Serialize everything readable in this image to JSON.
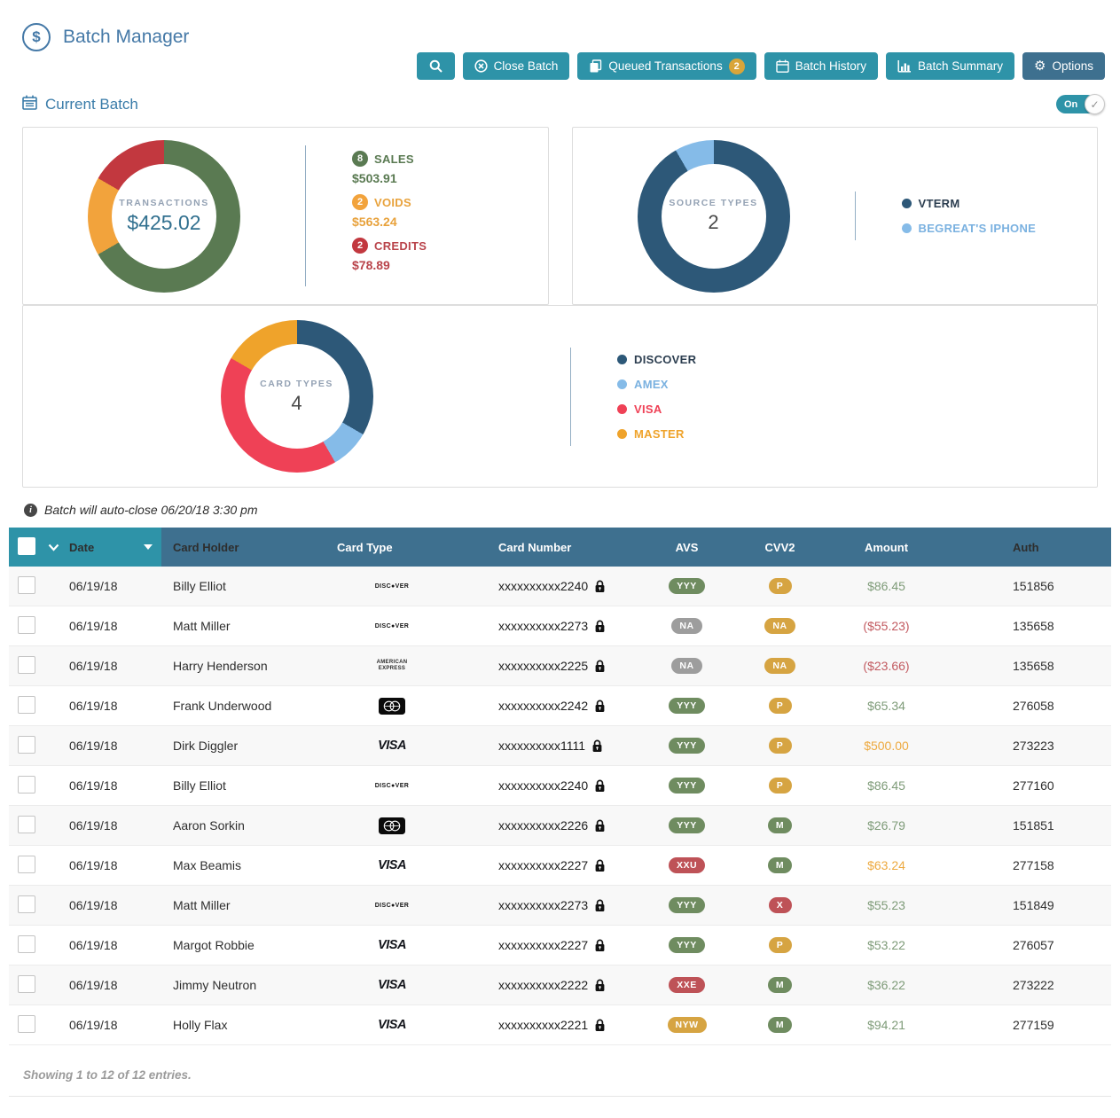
{
  "app": {
    "title": "Batch Manager",
    "section_title": "Current Batch",
    "toggle_label": "On",
    "notice": "Batch will auto-close 06/20/18 3:30 pm",
    "footer": "Showing 1 to 12 of 12 entries."
  },
  "toolbar": {
    "close_batch": "Close Batch",
    "queued_transactions": "Queued Transactions",
    "queued_count": "2",
    "batch_history": "Batch History",
    "batch_summary": "Batch Summary",
    "options": "Options"
  },
  "colors": {
    "accent_teal": "#2e93a8",
    "steel_blue": "#3e708f",
    "title_blue": "#4579a7",
    "badge_green": "#6f8c60",
    "badge_gold": "#d6a442",
    "badge_gray": "#9d9d9d",
    "badge_red": "#be5257",
    "amount_green": "#7e9b78",
    "amount_red": "#c25a60",
    "amount_orange": "#eda93f"
  },
  "chart_data": [
    {
      "type": "donut",
      "title": "TRANSACTIONS",
      "center_value": "$425.02",
      "legend_position": "right",
      "segments": [
        {
          "label": "SALES",
          "count": 8,
          "amount": "$503.91",
          "color": "#5a7a52",
          "label_color": "#5a7a52"
        },
        {
          "label": "VOIDS",
          "count": 2,
          "amount": "$563.24",
          "color": "#f2a33c",
          "label_color": "#e8a23c"
        },
        {
          "label": "CREDITS",
          "count": 2,
          "amount": "$78.89",
          "color": "#c2383f",
          "label_color": "#b9444b"
        }
      ]
    },
    {
      "type": "donut",
      "title": "SOURCE TYPES",
      "center_value": "2",
      "legend_position": "right",
      "segments": [
        {
          "label": "VTERM",
          "count": 11,
          "color": "#2d5878",
          "label_color": "#2c3e50"
        },
        {
          "label": "BEGREAT'S IPHONE",
          "count": 1,
          "color": "#85bbe8",
          "label_color": "#7ab1e0"
        }
      ]
    },
    {
      "type": "donut",
      "title": "CARD TYPES",
      "center_value": "4",
      "legend_position": "right",
      "segments": [
        {
          "label": "DISCOVER",
          "count": 4,
          "color": "#2d5878",
          "label_color": "#2c3e50"
        },
        {
          "label": "AMEX",
          "count": 1,
          "color": "#85bbe8",
          "label_color": "#7ab1e0"
        },
        {
          "label": "VISA",
          "count": 5,
          "color": "#ef4156",
          "label_color": "#ef4156"
        },
        {
          "label": "MASTER",
          "count": 2,
          "color": "#efa32b",
          "label_color": "#efa32b"
        }
      ]
    }
  ],
  "table": {
    "columns": [
      "Date",
      "Card Holder",
      "Card Type",
      "Card Number",
      "AVS",
      "CVV2",
      "Amount",
      "Auth"
    ],
    "card_type_display": {
      "discover": "DISC●VER",
      "amex": "AMERICAN EXPRESS",
      "visa": "VISA",
      "mastercard": "MasterCard"
    },
    "rows": [
      {
        "date": "06/19/18",
        "holder": "Billy Elliot",
        "card_type": "discover",
        "card_number": "xxxxxxxxxx2240",
        "avs": "YYY",
        "avs_color": "green",
        "cvv2": "P",
        "cvv2_color": "gold",
        "amount": "$86.45",
        "amount_color": "green",
        "auth": "151856"
      },
      {
        "date": "06/19/18",
        "holder": "Matt Miller",
        "card_type": "discover",
        "card_number": "xxxxxxxxxx2273",
        "avs": "NA",
        "avs_color": "gray",
        "cvv2": "NA",
        "cvv2_color": "gold",
        "amount": "($55.23)",
        "amount_color": "red",
        "auth": "135658"
      },
      {
        "date": "06/19/18",
        "holder": "Harry Henderson",
        "card_type": "amex",
        "card_number": "xxxxxxxxxx2225",
        "avs": "NA",
        "avs_color": "gray",
        "cvv2": "NA",
        "cvv2_color": "gold",
        "amount": "($23.66)",
        "amount_color": "red",
        "auth": "135658"
      },
      {
        "date": "06/19/18",
        "holder": "Frank Underwood",
        "card_type": "mastercard",
        "card_number": "xxxxxxxxxx2242",
        "avs": "YYY",
        "avs_color": "green",
        "cvv2": "P",
        "cvv2_color": "gold",
        "amount": "$65.34",
        "amount_color": "green",
        "auth": "276058"
      },
      {
        "date": "06/19/18",
        "holder": "Dirk Diggler",
        "card_type": "visa",
        "card_number": "xxxxxxxxxx1111",
        "avs": "YYY",
        "avs_color": "green",
        "cvv2": "P",
        "cvv2_color": "gold",
        "amount": "$500.00",
        "amount_color": "orange",
        "auth": "273223"
      },
      {
        "date": "06/19/18",
        "holder": "Billy Elliot",
        "card_type": "discover",
        "card_number": "xxxxxxxxxx2240",
        "avs": "YYY",
        "avs_color": "green",
        "cvv2": "P",
        "cvv2_color": "gold",
        "amount": "$86.45",
        "amount_color": "green",
        "auth": "277160"
      },
      {
        "date": "06/19/18",
        "holder": "Aaron Sorkin",
        "card_type": "mastercard",
        "card_number": "xxxxxxxxxx2226",
        "avs": "YYY",
        "avs_color": "green",
        "cvv2": "M",
        "cvv2_color": "green",
        "amount": "$26.79",
        "amount_color": "green",
        "auth": "151851"
      },
      {
        "date": "06/19/18",
        "holder": "Max Beamis",
        "card_type": "visa",
        "card_number": "xxxxxxxxxx2227",
        "avs": "XXU",
        "avs_color": "red",
        "cvv2": "M",
        "cvv2_color": "green",
        "amount": "$63.24",
        "amount_color": "orange",
        "auth": "277158"
      },
      {
        "date": "06/19/18",
        "holder": "Matt Miller",
        "card_type": "discover",
        "card_number": "xxxxxxxxxx2273",
        "avs": "YYY",
        "avs_color": "green",
        "cvv2": "X",
        "cvv2_color": "red",
        "amount": "$55.23",
        "amount_color": "green",
        "auth": "151849"
      },
      {
        "date": "06/19/18",
        "holder": "Margot Robbie",
        "card_type": "visa",
        "card_number": "xxxxxxxxxx2227",
        "avs": "YYY",
        "avs_color": "green",
        "cvv2": "P",
        "cvv2_color": "gold",
        "amount": "$53.22",
        "amount_color": "green",
        "auth": "276057"
      },
      {
        "date": "06/19/18",
        "holder": "Jimmy Neutron",
        "card_type": "visa",
        "card_number": "xxxxxxxxxx2222",
        "avs": "XXE",
        "avs_color": "red",
        "cvv2": "M",
        "cvv2_color": "green",
        "amount": "$36.22",
        "amount_color": "green",
        "auth": "273222"
      },
      {
        "date": "06/19/18",
        "holder": "Holly Flax",
        "card_type": "visa",
        "card_number": "xxxxxxxxxx2221",
        "avs": "NYW",
        "avs_color": "gold",
        "cvv2": "M",
        "cvv2_color": "green",
        "amount": "$94.21",
        "amount_color": "green",
        "auth": "277159"
      }
    ]
  }
}
